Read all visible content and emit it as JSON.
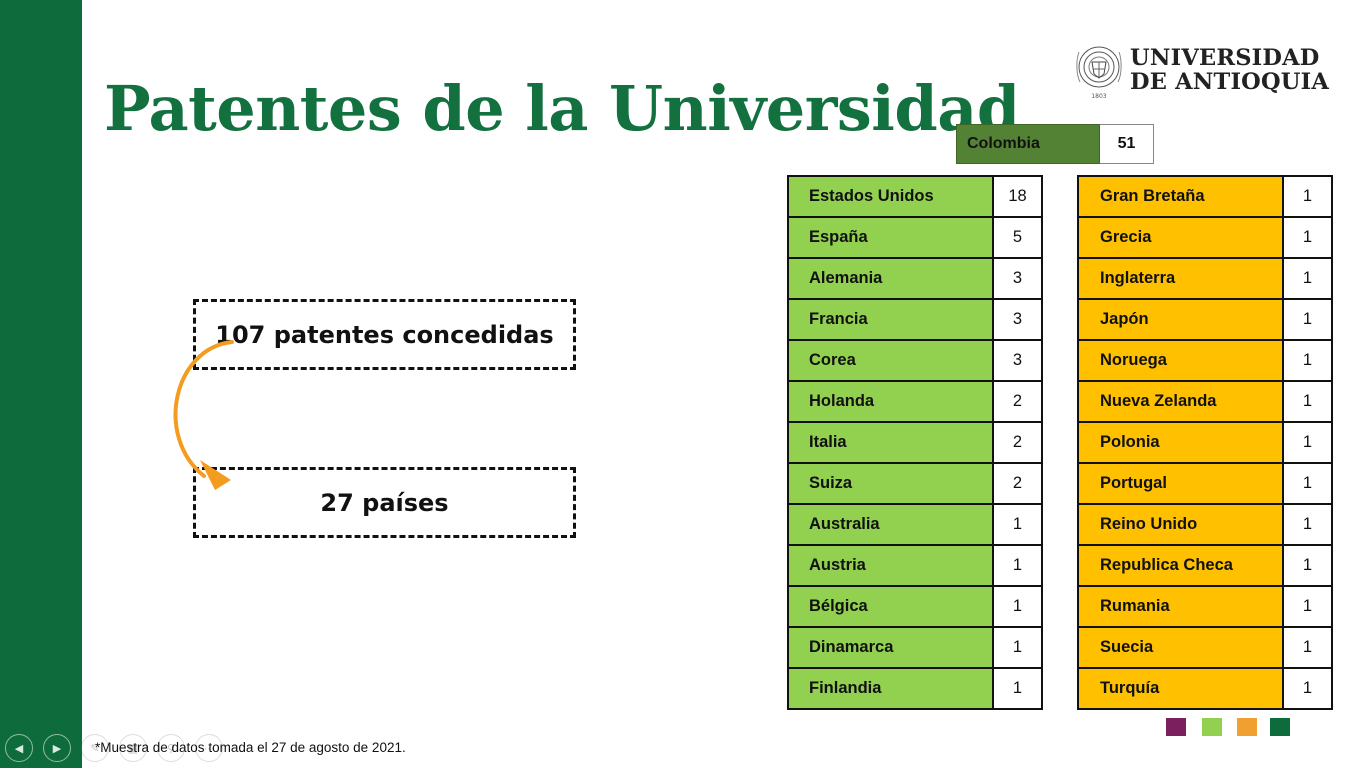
{
  "title": "Patentes de la Universidad",
  "logo": {
    "line1": "UNIVERSIDAD",
    "line2": "DE ANTIOQUIA",
    "seal_text": "1803"
  },
  "colombia": {
    "name": "Colombia",
    "value": "51"
  },
  "countries_left": [
    {
      "name": "Estados Unidos",
      "value": "18"
    },
    {
      "name": "España",
      "value": "5"
    },
    {
      "name": "Alemania",
      "value": "3"
    },
    {
      "name": "Francia",
      "value": "3"
    },
    {
      "name": "Corea",
      "value": "3"
    },
    {
      "name": "Holanda",
      "value": "2"
    },
    {
      "name": "Italia",
      "value": "2"
    },
    {
      "name": "Suiza",
      "value": "2"
    },
    {
      "name": "Australia",
      "value": "1"
    },
    {
      "name": "Austria",
      "value": "1"
    },
    {
      "name": "Bélgica",
      "value": "1"
    },
    {
      "name": "Dinamarca",
      "value": "1"
    },
    {
      "name": "Finlandia",
      "value": "1"
    }
  ],
  "countries_right": [
    {
      "name": "Gran Bretaña",
      "value": "1"
    },
    {
      "name": "Grecia",
      "value": "1"
    },
    {
      "name": "Inglaterra",
      "value": "1"
    },
    {
      "name": "Japón",
      "value": "1"
    },
    {
      "name": "Noruega",
      "value": "1"
    },
    {
      "name": "Nueva Zelanda",
      "value": "1"
    },
    {
      "name": "Polonia",
      "value": "1"
    },
    {
      "name": "Portugal",
      "value": "1"
    },
    {
      "name": "Reino Unido",
      "value": "1"
    },
    {
      "name": "Republica Checa",
      "value": "1"
    },
    {
      "name": "Rumania",
      "value": "1"
    },
    {
      "name": "Suecia",
      "value": "1"
    },
    {
      "name": "Turquía",
      "value": "1"
    }
  ],
  "summary": {
    "patents": "107 patentes concedidas",
    "countries": "27 países"
  },
  "footnote": "*Muestra de datos tomada el 27 de agosto de 2021.",
  "nav_icons": [
    "previous-slide-icon",
    "next-slide-icon",
    "pen-icon",
    "slides-grid-icon",
    "zoom-icon",
    "more-options-icon"
  ],
  "colors": {
    "sidebar": "#0e6b3b",
    "title": "#13703f",
    "colombia": "#548235",
    "left_table": "#92d050",
    "right_table": "#ffc000",
    "arrow": "#f39c1f",
    "accent_squares": [
      "#7b1f5e",
      "#92d050",
      "#f0a030",
      "#0e6b3b"
    ]
  }
}
